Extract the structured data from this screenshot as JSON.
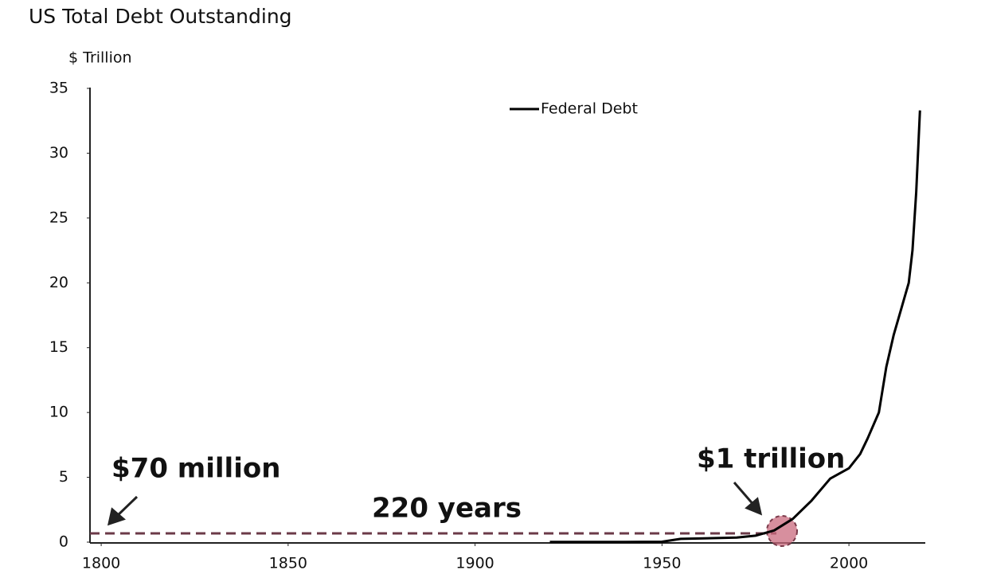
{
  "chart_data": {
    "type": "line",
    "title": "US Total Debt Outstanding",
    "y_label": "$ Trillion",
    "x": [
      1920,
      1930,
      1940,
      1950,
      1955,
      1960,
      1970,
      1975,
      1980,
      1985,
      1990,
      1995,
      2000,
      2003,
      2005,
      2008,
      2010,
      2012,
      2014,
      2016,
      2017,
      2018,
      2019
    ],
    "series": [
      {
        "name": "Federal Debt",
        "color": "#000000",
        "values": [
          0.02,
          0.02,
          0.02,
          0.03,
          0.25,
          0.28,
          0.35,
          0.5,
          0.9,
          1.8,
          3.2,
          4.9,
          5.7,
          6.8,
          8,
          10,
          13.5,
          16,
          18,
          20,
          22.5,
          27,
          33.3
        ]
      }
    ],
    "xlim": [
      1797,
      2020
    ],
    "ylim": [
      0,
      35
    ],
    "xticks": [
      1800,
      1850,
      1900,
      1950,
      2000
    ],
    "yticks": [
      0,
      5,
      10,
      15,
      20,
      25,
      30,
      35
    ],
    "grid": false,
    "legend": "top",
    "annotations": [
      "$70 million",
      "220 years",
      "$1 trillion"
    ]
  }
}
